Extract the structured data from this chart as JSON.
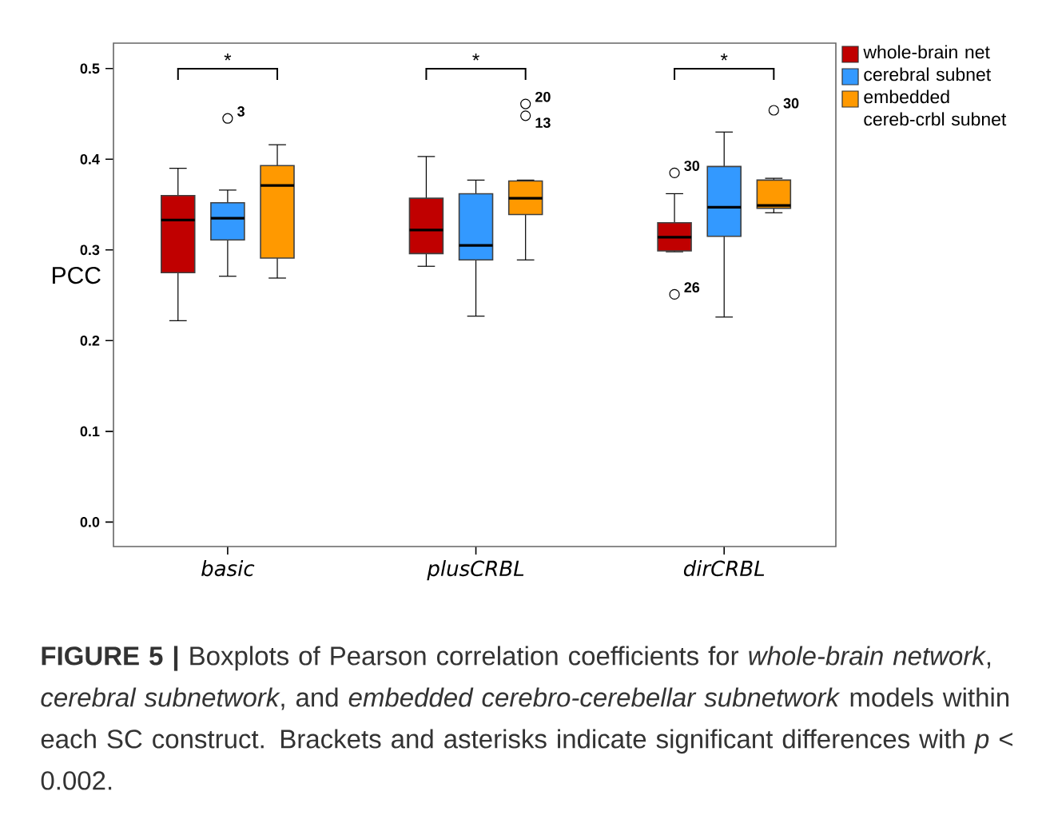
{
  "chart_data": {
    "type": "box",
    "ylabel": "PCC",
    "categories": [
      "basic",
      "plusCRBL",
      "dirCRBL"
    ],
    "ylim": [
      -0.027,
      0.528
    ],
    "yticks": [
      {
        "value": 0,
        "label": "0.0"
      },
      {
        "value": 0.1,
        "label": "0.1"
      },
      {
        "value": 0.2,
        "label": "0.2"
      },
      {
        "value": 0.3,
        "label": "0.3"
      },
      {
        "value": 0.4,
        "label": "0.4"
      },
      {
        "value": 0.5,
        "label": "0.5"
      }
    ],
    "legend": "right",
    "series": [
      {
        "name": "whole-brain net",
        "color": "#c00000",
        "boxes": [
          {
            "low": 0.222,
            "q1": 0.275,
            "median": 0.333,
            "q3": 0.36,
            "high": 0.39
          },
          {
            "low": 0.282,
            "q1": 0.296,
            "median": 0.322,
            "q3": 0.357,
            "high": 0.403
          },
          {
            "low": 0.298,
            "q1": 0.299,
            "median": 0.314,
            "q3": 0.33,
            "high": 0.362,
            "outliers": [
              0.385,
              0.251
            ]
          }
        ]
      },
      {
        "name": "cerebral subnet",
        "color": "#3399ff",
        "boxes": [
          {
            "low": 0.271,
            "q1": 0.311,
            "median": 0.335,
            "q3": 0.352,
            "high": 0.366,
            "outliers": [
              0.445
            ]
          },
          {
            "low": 0.227,
            "q1": 0.289,
            "median": 0.305,
            "q3": 0.362,
            "high": 0.377
          },
          {
            "low": 0.226,
            "q1": 0.315,
            "median": 0.347,
            "q3": 0.392,
            "high": 0.43
          }
        ]
      },
      {
        "name": "embedded cereb-crbl subnet",
        "color": "#ff9900",
        "boxes": [
          {
            "low": 0.269,
            "q1": 0.291,
            "median": 0.371,
            "q3": 0.393,
            "high": 0.416
          },
          {
            "low": 0.289,
            "q1": 0.339,
            "median": 0.357,
            "q3": 0.376,
            "high": 0.377,
            "outliers": [
              0.461,
              0.448
            ]
          },
          {
            "low": 0.341,
            "q1": 0.346,
            "median": 0.349,
            "q3": 0.377,
            "high": 0.379,
            "outliers": [
              0.454
            ]
          }
        ]
      }
    ],
    "annotations": [
      "*",
      "*",
      "*",
      "3",
      "20",
      "13",
      "30",
      "26",
      "30",
      "**FIGURE 5 |** Boxplots of Pearson correlation coefficients for *whole-brain network*, *cerebral subnetwork*, and *embedded cerebro-cerebellar subnetwork* models within each SC construct. Brackets and asterisks indicate significant differences with *p* < 0.002."
    ]
  }
}
